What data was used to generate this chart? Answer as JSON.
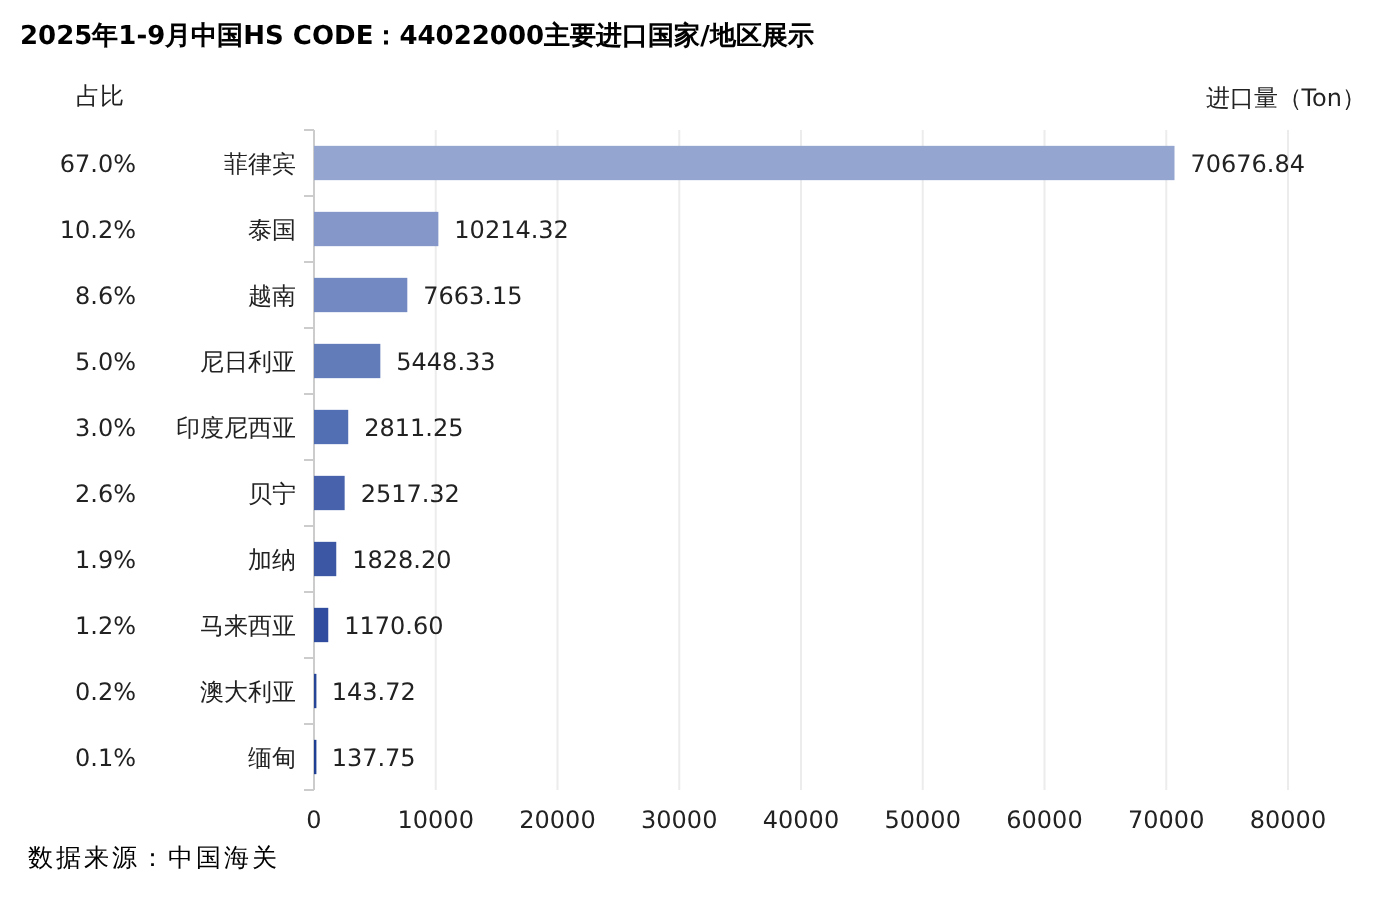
{
  "chart_data": {
    "type": "bar",
    "orientation": "horizontal",
    "title": "2025年1-9月中国HS CODE：44022000主要进口国家/地区展示",
    "xlabel": "进口量（Ton）",
    "categories": [
      "菲律宾",
      "泰国",
      "越南",
      "尼日利亚",
      "印度尼西亚",
      "贝宁",
      "加纳",
      "马来西亚",
      "澳大利亚",
      "缅甸"
    ],
    "values": [
      70676.84,
      10214.32,
      7663.15,
      5448.33,
      2811.25,
      2517.32,
      1828.2,
      1170.6,
      143.72,
      137.75
    ],
    "value_labels": [
      "70676.84",
      "10214.32",
      "7663.15",
      "5448.33",
      "2811.25",
      "2517.32",
      "1828.20",
      "1170.60",
      "143.72",
      "137.75"
    ],
    "colors": [
      "#94a5cf",
      "#8497c8",
      "#7389c1",
      "#627bb9",
      "#536fb3",
      "#4863ab",
      "#3c58a5",
      "#2f4c9e",
      "#264597",
      "#1f3f93"
    ],
    "xlim": [
      0,
      80000
    ],
    "xticks": [
      0,
      10000,
      20000,
      30000,
      40000,
      50000,
      60000,
      70000,
      80000
    ],
    "grid": "x",
    "annotations": [
      "占比",
      "67.0%",
      "10.2%",
      "8.6%",
      "5.0%",
      "3.0%",
      "2.6%",
      "1.9%",
      "1.2%",
      "0.2%",
      "0.1%",
      "数据来源：中国海关"
    ]
  }
}
